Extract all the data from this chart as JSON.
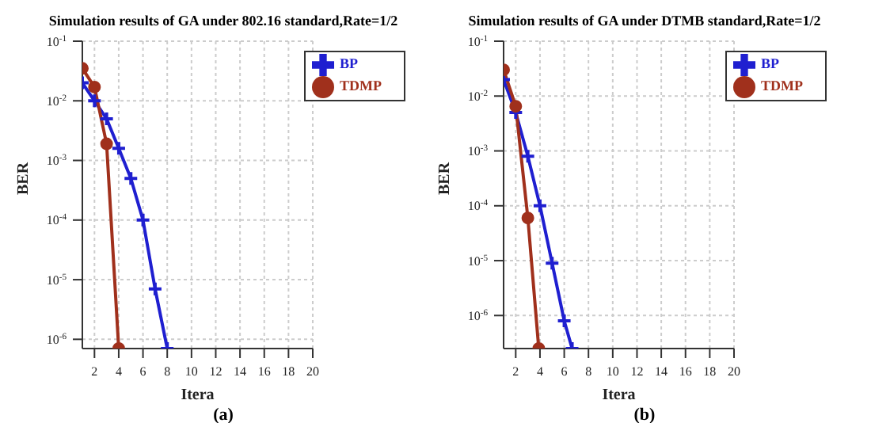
{
  "chart_data": [
    {
      "type": "line",
      "title": "Simulation results of GA under 802.16 standard,Rate=1/2",
      "xlabel": "Itera",
      "ylabel": "BER",
      "log": "y",
      "grid": true,
      "legend": "top right",
      "xlim": [
        1,
        20
      ],
      "xticks": [
        2,
        4,
        6,
        8,
        10,
        12,
        14,
        16,
        18,
        20
      ],
      "ylim": [
        7e-07,
        0.1
      ],
      "yticks": [
        {
          "value": 1e-06,
          "label": "10$^{-6}$"
        },
        {
          "value": 1e-05,
          "label": "10$^{-5}$"
        },
        {
          "value": 0.0001,
          "label": "10$^{-4}$"
        },
        {
          "value": 0.001,
          "label": "10$^{-3}$"
        },
        {
          "value": 0.01,
          "label": "10$^{-2}$"
        },
        {
          "value": 0.1,
          "label": "10$^{-1}$"
        }
      ],
      "annotations": [
        "(a)"
      ],
      "series": [
        {
          "name": "BP",
          "color": "#1f1fd0",
          "marker": "cross",
          "x": [
            1,
            2,
            3,
            4,
            5,
            6,
            7,
            8
          ],
          "values": [
            0.02,
            0.01,
            0.005,
            0.0016,
            0.0005,
            0.0001,
            7e-06,
            7e-07
          ]
        },
        {
          "name": "TDMP",
          "color": "#a0301c",
          "marker": "circle",
          "x": [
            1,
            2,
            3,
            4
          ],
          "values": [
            0.035,
            0.017,
            0.0019,
            7e-07
          ]
        }
      ]
    },
    {
      "type": "line",
      "title": "Simulation results of GA under DTMB standard,Rate=1/2",
      "xlabel": "Itera",
      "ylabel": "BER",
      "log": "y",
      "grid": true,
      "legend": "top right",
      "xlim": [
        1,
        20
      ],
      "xticks": [
        2,
        4,
        6,
        8,
        10,
        12,
        14,
        16,
        18,
        20
      ],
      "ylim": [
        2.5e-07,
        0.1
      ],
      "yticks": [
        {
          "value": 1e-06,
          "label": "10$^{-6}$"
        },
        {
          "value": 1e-05,
          "label": "10$^{-5}$"
        },
        {
          "value": 0.0001,
          "label": "10$^{-4}$"
        },
        {
          "value": 0.001,
          "label": "10$^{-3}$"
        },
        {
          "value": 0.01,
          "label": "10$^{-2}$"
        },
        {
          "value": 0.1,
          "label": "10$^{-1}$"
        }
      ],
      "annotations": [
        "(b)"
      ],
      "series": [
        {
          "name": "BP",
          "color": "#1f1fd0",
          "marker": "cross",
          "x": [
            1,
            2,
            3,
            4,
            5,
            6,
            6.65
          ],
          "values": [
            0.02,
            0.005,
            0.0008,
            0.0001,
            9e-06,
            8e-07,
            2.5e-07
          ]
        },
        {
          "name": "TDMP",
          "color": "#a0301c",
          "marker": "circle",
          "x": [
            1,
            2,
            3,
            3.9
          ],
          "values": [
            0.03,
            0.0065,
            6e-05,
            2.5e-07
          ]
        }
      ]
    }
  ]
}
